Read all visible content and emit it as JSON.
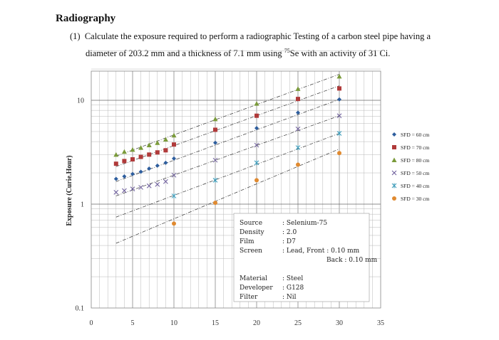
{
  "heading": "Radiography",
  "question": {
    "number": "(1)",
    "line1": "Calculate the exposure required to perform a radiographic Testing of a carbon steel pipe having a",
    "line2_pre": "diameter of 203.2 mm and a thickness of 7.1 mm using ",
    "isotope_mass": "75",
    "line2_post": "Se with an activity of 31 Ci."
  },
  "chart_data": {
    "type": "scatter",
    "title": "",
    "xlabel": "",
    "ylabel": "Exposure (Curie.Hour)",
    "xlim": [
      0,
      35
    ],
    "ylim": [
      0.1,
      30
    ],
    "yscale": "log",
    "grid": true,
    "legend_position": "right",
    "x_ticks": [
      0,
      5,
      10,
      15,
      20,
      25,
      30,
      35
    ],
    "y_ticks": [
      {
        "value": 0.1,
        "label": "0.1"
      },
      {
        "value": 1,
        "label": "1"
      },
      {
        "value": 10,
        "label": "10"
      }
    ],
    "series": [
      {
        "name": "SFD = 60 cm",
        "marker": "diamond",
        "color": "#2e5e9e",
        "x": [
          3,
          4,
          5,
          6,
          7,
          8,
          9,
          10,
          15,
          20,
          25,
          30
        ],
        "y": [
          1.75,
          1.85,
          1.95,
          2.05,
          2.2,
          2.35,
          2.5,
          2.75,
          3.9,
          5.4,
          7.6,
          10.2
        ],
        "trend": [
          [
            3,
            1.65
          ],
          [
            30,
            10.2
          ]
        ]
      },
      {
        "name": "SFD = 70 cm",
        "marker": "square",
        "color": "#b03a3a",
        "x": [
          3,
          4,
          5,
          6,
          7,
          8,
          9,
          10,
          15,
          20,
          25,
          30
        ],
        "y": [
          2.45,
          2.6,
          2.7,
          2.85,
          3.0,
          3.15,
          3.3,
          3.75,
          5.2,
          7.1,
          10.3,
          13.0
        ],
        "trend": [
          [
            3,
            2.3
          ],
          [
            30,
            13.8
          ]
        ]
      },
      {
        "name": "SFD = 80 cm",
        "marker": "triangle",
        "color": "#7a9a3a",
        "x": [
          3,
          4,
          5,
          6,
          7,
          8,
          9,
          10,
          15,
          20,
          25,
          30
        ],
        "y": [
          3.0,
          3.2,
          3.35,
          3.5,
          3.7,
          3.9,
          4.2,
          4.6,
          6.6,
          9.3,
          12.9,
          17.0
        ],
        "trend": [
          [
            3,
            2.9
          ],
          [
            30,
            17.8
          ]
        ]
      },
      {
        "name": "SFD = 50 cm",
        "marker": "x",
        "color": "#6a5a9a",
        "x": [
          3,
          4,
          5,
          6,
          7,
          8,
          9,
          10,
          15,
          20,
          25,
          30
        ],
        "y": [
          1.3,
          1.35,
          1.4,
          1.45,
          1.5,
          1.55,
          1.65,
          1.9,
          2.65,
          3.7,
          5.3,
          7.1
        ],
        "trend": [
          [
            3,
            1.2
          ],
          [
            30,
            7.1
          ]
        ]
      },
      {
        "name": "SFD = 40 cm",
        "marker": "star",
        "color": "#3a9ab8",
        "x": [
          10,
          15,
          20,
          25,
          30
        ],
        "y": [
          1.2,
          1.7,
          2.5,
          3.5,
          4.8
        ],
        "trend": [
          [
            3,
            0.75
          ],
          [
            30,
            4.8
          ]
        ]
      },
      {
        "name": "SFD = 30 cm",
        "marker": "circle",
        "color": "#e08a30",
        "x": [
          10,
          15,
          20,
          25,
          30
        ],
        "y": [
          0.65,
          1.03,
          1.7,
          2.4,
          3.1
        ],
        "trend": [
          [
            3,
            0.42
          ],
          [
            30,
            3.4
          ]
        ]
      }
    ],
    "annotation": [
      {
        "key": "Source",
        "value": ": Selenium-75"
      },
      {
        "key": "Density",
        "value": ": 2.0"
      },
      {
        "key": "Film",
        "value": ": D7"
      },
      {
        "key": "Screen",
        "value": ": Lead, Front : 0.10 mm"
      },
      {
        "key": "",
        "value": "Back  : 0.10 mm"
      },
      {
        "key": "",
        "value": ""
      },
      {
        "key": "Material",
        "value": ": Steel"
      },
      {
        "key": "Developer",
        "value": ": G128"
      },
      {
        "key": "Filter",
        "value": ": Nil"
      }
    ]
  }
}
